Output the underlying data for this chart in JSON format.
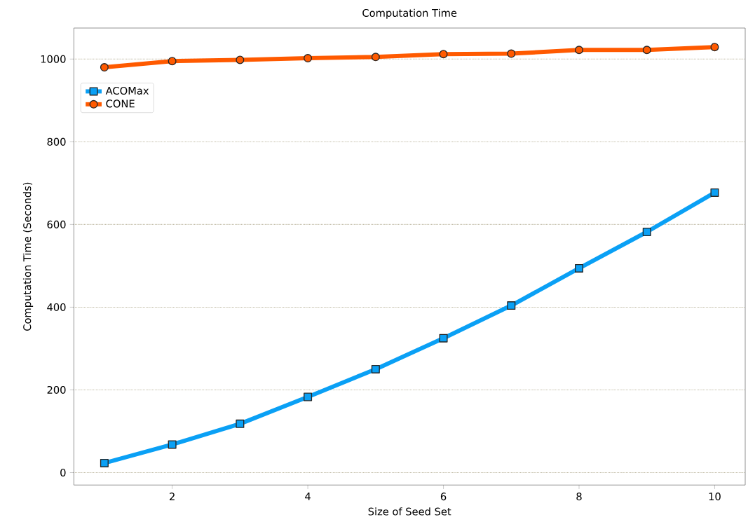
{
  "chart_data": {
    "type": "line",
    "title": "Computation Time",
    "xlabel": "Size of Seed Set",
    "ylabel": "Computation Time (Seconds)",
    "x": [
      1,
      2,
      3,
      4,
      5,
      6,
      7,
      8,
      9,
      10
    ],
    "series": [
      {
        "name": "ACOMax",
        "color": "#0aa0f5",
        "marker": "square",
        "values": [
          23,
          68,
          118,
          183,
          250,
          325,
          404,
          494,
          582,
          677
        ]
      },
      {
        "name": "CONE",
        "color": "#ff5a00",
        "marker": "circle",
        "values": [
          980,
          995,
          998,
          1002,
          1005,
          1012,
          1013,
          1022,
          1022,
          1029
        ]
      }
    ],
    "xlim": [
      0.55,
      10.45
    ],
    "ylim": [
      -30,
      1075
    ],
    "xticks": [
      2,
      4,
      6,
      8,
      10
    ],
    "yticks": [
      0,
      200,
      400,
      600,
      800,
      1000
    ],
    "grid": "y",
    "legend": "top left",
    "line_style": "solid"
  }
}
